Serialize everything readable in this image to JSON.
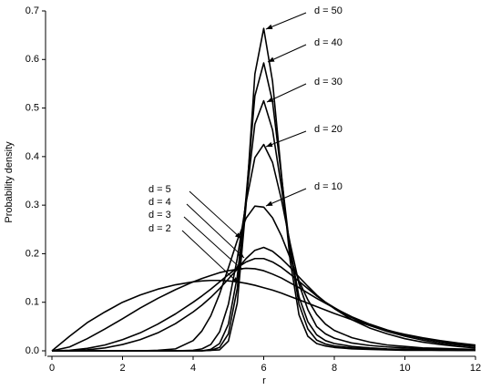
{
  "chart_data": {
    "type": "line",
    "xlabel": "r",
    "ylabel": "Probability density",
    "xlim": [
      0,
      12
    ],
    "xticks": [
      0,
      2,
      4,
      6,
      8,
      10,
      12
    ],
    "ylim": [
      0,
      0.7
    ],
    "yticks": [
      {
        "value": 0,
        "label": "0.0"
      },
      0.1,
      0.2,
      0.3,
      0.4,
      0.5,
      0.6,
      0.7
    ],
    "grid": false,
    "x": [
      0,
      0.5,
      1,
      1.5,
      2,
      2.5,
      3,
      3.5,
      4,
      4.25,
      4.5,
      4.75,
      5,
      5.25,
      5.5,
      5.75,
      6,
      6.25,
      6.5,
      6.75,
      7,
      7.25,
      7.5,
      7.75,
      8,
      8.5,
      9,
      9.5,
      10,
      10.5,
      11,
      11.5,
      12
    ],
    "series": [
      {
        "name": "d = 50",
        "color": "#000000",
        "values": [
          0,
          0,
          0,
          0,
          0,
          0,
          0,
          0,
          0,
          0,
          0.001,
          0.002,
          0.02,
          0.098,
          0.3,
          0.57,
          0.664,
          0.555,
          0.365,
          0.185,
          0.074,
          0.03,
          0.015,
          0.01,
          0.007,
          0.004,
          0.003,
          0.002,
          0.001,
          0.001,
          0.001,
          0.001,
          0.001
        ]
      },
      {
        "name": "d = 40",
        "color": "#000000",
        "values": [
          0,
          0,
          0,
          0,
          0,
          0,
          0,
          0,
          0,
          0,
          0.001,
          0.007,
          0.035,
          0.128,
          0.317,
          0.525,
          0.593,
          0.513,
          0.361,
          0.206,
          0.096,
          0.045,
          0.022,
          0.014,
          0.01,
          0.006,
          0.004,
          0.003,
          0.002,
          0.002,
          0.001,
          0.001,
          0.001
        ]
      },
      {
        "name": "d = 30",
        "color": "#000000",
        "values": [
          0,
          0,
          0,
          0,
          0,
          0,
          0,
          0,
          0,
          0,
          0.003,
          0.015,
          0.055,
          0.153,
          0.312,
          0.467,
          0.515,
          0.455,
          0.338,
          0.211,
          0.111,
          0.06,
          0.033,
          0.021,
          0.015,
          0.009,
          0.006,
          0.004,
          0.003,
          0.002,
          0.002,
          0.001,
          0.001
        ]
      },
      {
        "name": "d = 20",
        "color": "#000000",
        "values": [
          0,
          0,
          0,
          0,
          0,
          0,
          0,
          0,
          0.001,
          0.004,
          0.013,
          0.039,
          0.096,
          0.19,
          0.305,
          0.398,
          0.425,
          0.388,
          0.312,
          0.221,
          0.138,
          0.085,
          0.05,
          0.035,
          0.026,
          0.016,
          0.011,
          0.008,
          0.006,
          0.004,
          0.003,
          0.002,
          0.002
        ]
      },
      {
        "name": "d = 10",
        "color": "#000000",
        "values": [
          0,
          0,
          0,
          0,
          0,
          0,
          0.001,
          0.004,
          0.021,
          0.041,
          0.072,
          0.117,
          0.171,
          0.227,
          0.273,
          0.298,
          0.296,
          0.274,
          0.237,
          0.191,
          0.144,
          0.105,
          0.075,
          0.055,
          0.042,
          0.027,
          0.018,
          0.012,
          0.009,
          0.006,
          0.005,
          0.004,
          0.003
        ]
      },
      {
        "name": "d = 5",
        "color": "#000000",
        "values": [
          0,
          0,
          0.002,
          0.006,
          0.013,
          0.023,
          0.037,
          0.056,
          0.08,
          0.094,
          0.11,
          0.128,
          0.148,
          0.168,
          0.19,
          0.207,
          0.213,
          0.205,
          0.19,
          0.172,
          0.152,
          0.133,
          0.115,
          0.1,
          0.087,
          0.064,
          0.047,
          0.035,
          0.025,
          0.018,
          0.013,
          0.009,
          0.006
        ]
      },
      {
        "name": "d = 4",
        "color": "#000000",
        "values": [
          0,
          0.001,
          0.005,
          0.012,
          0.023,
          0.037,
          0.055,
          0.076,
          0.1,
          0.113,
          0.127,
          0.142,
          0.157,
          0.171,
          0.183,
          0.19,
          0.19,
          0.183,
          0.172,
          0.158,
          0.143,
          0.128,
          0.113,
          0.1,
          0.089,
          0.068,
          0.052,
          0.04,
          0.03,
          0.022,
          0.016,
          0.012,
          0.009
        ]
      },
      {
        "name": "d = 3",
        "color": "#000000",
        "values": [
          0,
          0.008,
          0.025,
          0.045,
          0.066,
          0.088,
          0.108,
          0.126,
          0.142,
          0.149,
          0.155,
          0.161,
          0.165,
          0.168,
          0.17,
          0.169,
          0.165,
          0.158,
          0.15,
          0.14,
          0.13,
          0.119,
          0.108,
          0.098,
          0.088,
          0.07,
          0.055,
          0.043,
          0.033,
          0.025,
          0.019,
          0.014,
          0.011
        ]
      },
      {
        "name": "d = 2",
        "color": "#000000",
        "values": [
          0,
          0.03,
          0.058,
          0.08,
          0.1,
          0.115,
          0.127,
          0.136,
          0.142,
          0.144,
          0.145,
          0.145,
          0.144,
          0.142,
          0.139,
          0.135,
          0.13,
          0.125,
          0.119,
          0.112,
          0.105,
          0.098,
          0.091,
          0.084,
          0.077,
          0.064,
          0.052,
          0.042,
          0.034,
          0.027,
          0.021,
          0.016,
          0.012
        ]
      }
    ]
  }
}
